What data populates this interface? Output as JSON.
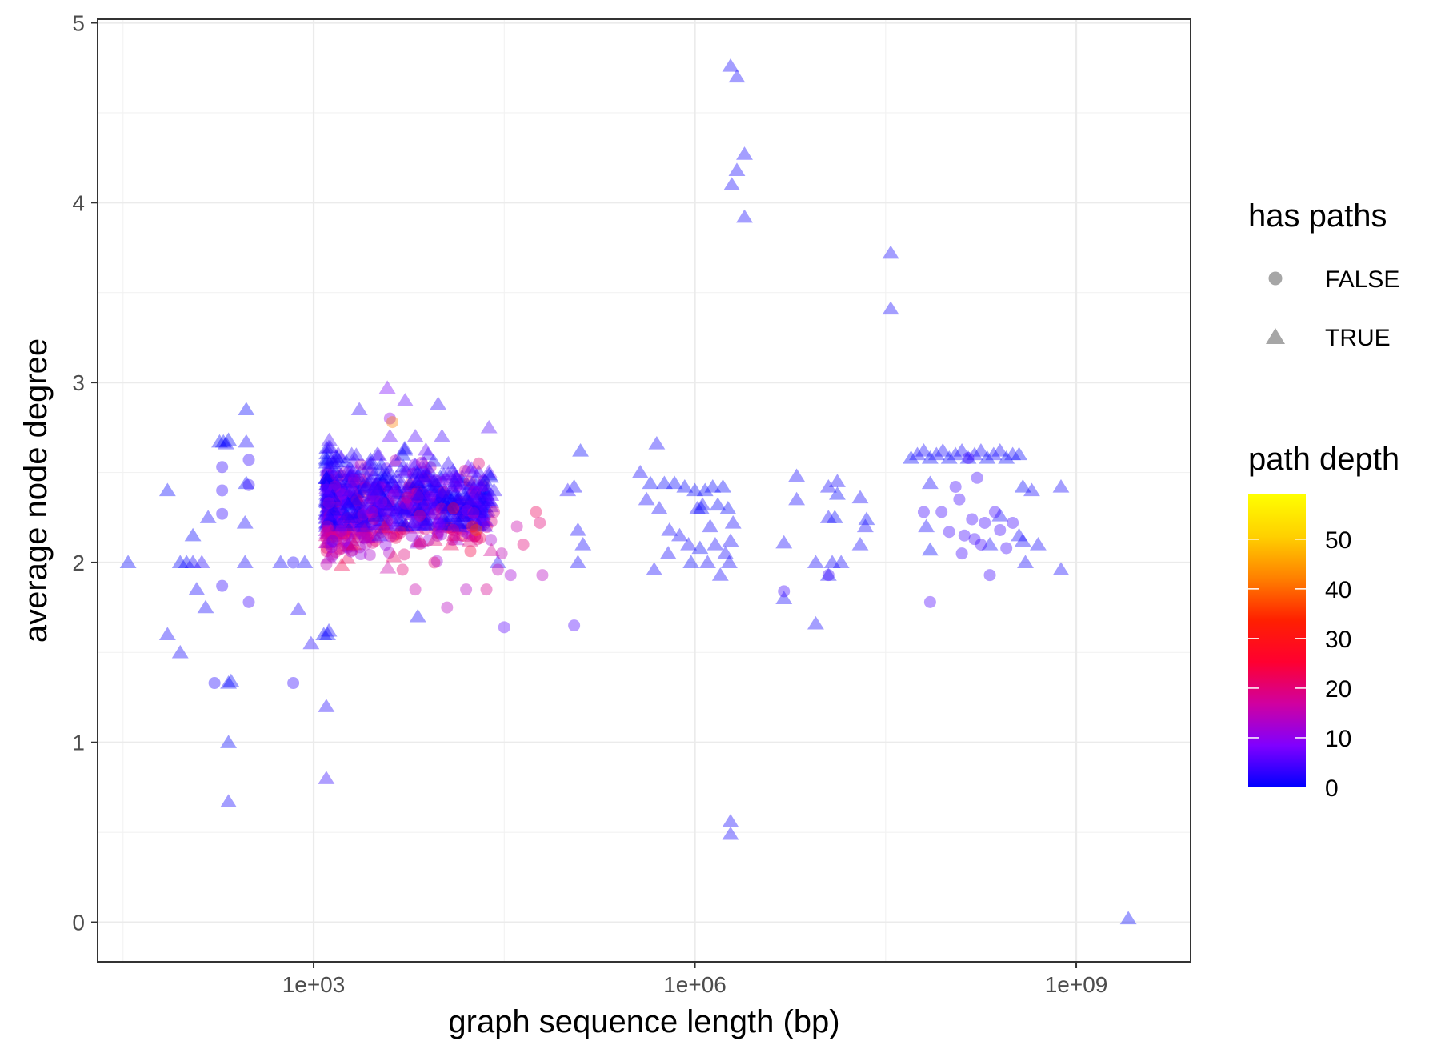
{
  "chart_data": {
    "type": "scatter",
    "title": "",
    "xlabel": "graph sequence length (bp)",
    "ylabel": "average node degree",
    "x_scale": "log10",
    "xlim": [
      1.3,
      9.9
    ],
    "ylim": [
      -0.22,
      5.02
    ],
    "x_ticks": [
      {
        "value": 3,
        "label": "1e+03"
      },
      {
        "value": 6,
        "label": "1e+06"
      },
      {
        "value": 9,
        "label": "1e+09"
      }
    ],
    "x_minor_ticks": [
      1.5,
      4.5,
      7.5
    ],
    "y_ticks": [
      {
        "value": 0,
        "label": "0"
      },
      {
        "value": 1,
        "label": "1"
      },
      {
        "value": 2,
        "label": "2"
      },
      {
        "value": 3,
        "label": "3"
      },
      {
        "value": 4,
        "label": "4"
      },
      {
        "value": 5,
        "label": "5"
      }
    ],
    "y_minor_ticks": [
      0.5,
      1.5,
      2.5,
      3.5,
      4.5
    ],
    "grid": true,
    "legend_position": "right",
    "shape_legend": {
      "title": "has paths",
      "items": [
        {
          "label": "FALSE",
          "shape": "circle"
        },
        {
          "label": "TRUE",
          "shape": "triangle"
        }
      ]
    },
    "color_legend": {
      "title": "path depth",
      "min": 0,
      "max": 59,
      "ticks": [
        0,
        10,
        20,
        30,
        40,
        50
      ],
      "colors": [
        "#0000ff",
        "#8000ff",
        "#d000a0",
        "#ff0030",
        "#ff2000",
        "#ff8000",
        "#ffd000",
        "#ffff00"
      ]
    },
    "series": [
      {
        "name": "TRUE",
        "shape": "triangle",
        "points": [
          [
            1.54,
            2.0,
            0
          ],
          [
            1.85,
            2.4,
            0
          ],
          [
            1.85,
            1.6,
            1
          ],
          [
            1.95,
            1.5,
            1
          ],
          [
            1.95,
            2.0,
            0
          ],
          [
            2.0,
            2.0,
            0
          ],
          [
            2.05,
            2.15,
            0
          ],
          [
            2.05,
            2.0,
            1
          ],
          [
            2.08,
            1.85,
            1
          ],
          [
            2.12,
            2.0,
            2
          ],
          [
            2.15,
            1.75,
            1
          ],
          [
            2.17,
            2.25,
            1
          ],
          [
            2.26,
            2.67,
            0
          ],
          [
            2.29,
            2.67,
            0
          ],
          [
            2.31,
            2.66,
            1
          ],
          [
            2.33,
            2.68,
            0
          ],
          [
            2.33,
            1.33,
            0
          ],
          [
            2.33,
            1.0,
            0
          ],
          [
            2.33,
            0.67,
            1
          ],
          [
            2.35,
            1.34,
            0
          ],
          [
            2.47,
            2.85,
            0
          ],
          [
            2.47,
            2.67,
            1
          ],
          [
            2.47,
            2.44,
            0
          ],
          [
            2.46,
            2.22,
            1
          ],
          [
            2.46,
            2.0,
            1
          ],
          [
            2.74,
            2.0,
            1
          ],
          [
            2.93,
            2.0,
            1
          ],
          [
            3.08,
            1.6,
            0
          ],
          [
            3.1,
            1.2,
            2
          ],
          [
            3.1,
            0.8,
            3
          ],
          [
            2.98,
            1.55,
            2
          ],
          [
            3.11,
            1.6,
            0
          ],
          [
            3.13,
            2.33,
            3
          ],
          [
            2.88,
            1.74,
            2
          ],
          [
            3.12,
            1.62,
            1
          ],
          [
            3.29,
            2.4,
            4
          ],
          [
            3.32,
            2.35,
            2
          ],
          [
            3.36,
            2.85,
            3
          ],
          [
            3.4,
            2.2,
            5
          ],
          [
            3.48,
            2.4,
            5
          ],
          [
            3.5,
            2.6,
            3
          ],
          [
            3.58,
            2.97,
            8
          ],
          [
            3.6,
            2.7,
            6
          ],
          [
            3.64,
            2.4,
            10
          ],
          [
            3.72,
            2.9,
            6
          ],
          [
            3.8,
            2.7,
            5
          ],
          [
            3.9,
            2.6,
            4
          ],
          [
            3.98,
            2.88,
            3
          ],
          [
            4.01,
            2.7,
            4
          ],
          [
            4.06,
            2.55,
            3
          ],
          [
            4.11,
            2.45,
            3
          ],
          [
            4.2,
            2.35,
            3
          ],
          [
            4.3,
            2.5,
            4
          ],
          [
            4.38,
            2.75,
            5
          ],
          [
            4.42,
            2.4,
            3
          ],
          [
            4.45,
            2.0,
            2
          ],
          [
            3.82,
            1.7,
            1
          ],
          [
            3.52,
            2.15,
            4
          ],
          [
            3.7,
            2.3,
            3
          ],
          [
            3.3,
            2.6,
            3
          ],
          [
            3.45,
            2.55,
            2
          ],
          [
            4.15,
            2.2,
            3
          ],
          [
            4.05,
            2.3,
            4
          ],
          [
            3.95,
            2.45,
            3
          ],
          [
            5.0,
            2.4,
            2
          ],
          [
            5.05,
            2.42,
            1
          ],
          [
            5.08,
            2.18,
            1
          ],
          [
            5.08,
            2.0,
            1
          ],
          [
            5.12,
            2.1,
            1
          ],
          [
            5.1,
            2.62,
            0
          ],
          [
            5.57,
            2.5,
            1
          ],
          [
            5.62,
            2.35,
            1
          ],
          [
            5.65,
            2.44,
            0
          ],
          [
            5.68,
            1.96,
            1
          ],
          [
            5.7,
            2.66,
            1
          ],
          [
            5.72,
            2.3,
            1
          ],
          [
            5.76,
            2.44,
            0
          ],
          [
            5.79,
            2.05,
            1
          ],
          [
            5.8,
            2.18,
            1
          ],
          [
            5.84,
            2.44,
            0
          ],
          [
            5.88,
            2.15,
            1
          ],
          [
            5.92,
            2.42,
            0
          ],
          [
            5.95,
            2.1,
            1
          ],
          [
            5.97,
            2.0,
            0
          ],
          [
            6.0,
            2.4,
            0
          ],
          [
            6.02,
            2.3,
            1
          ],
          [
            6.04,
            2.08,
            0
          ],
          [
            6.06,
            2.32,
            1
          ],
          [
            6.08,
            2.4,
            0
          ],
          [
            6.1,
            2.0,
            1
          ],
          [
            6.12,
            2.2,
            1
          ],
          [
            6.14,
            2.42,
            0
          ],
          [
            6.16,
            2.1,
            1
          ],
          [
            6.18,
            2.32,
            0
          ],
          [
            6.2,
            1.93,
            1
          ],
          [
            6.22,
            2.42,
            0
          ],
          [
            6.24,
            2.05,
            1
          ],
          [
            6.26,
            2.3,
            0
          ],
          [
            6.28,
            2.12,
            1
          ],
          [
            6.3,
            2.22,
            1
          ],
          [
            6.27,
            2.0,
            1
          ],
          [
            6.05,
            2.3,
            0
          ],
          [
            6.28,
            4.76,
            1
          ],
          [
            6.33,
            4.7,
            1
          ],
          [
            6.33,
            4.18,
            1
          ],
          [
            6.29,
            4.1,
            1
          ],
          [
            6.39,
            4.27,
            1
          ],
          [
            6.39,
            3.92,
            1
          ],
          [
            6.28,
            0.56,
            1
          ],
          [
            6.28,
            0.49,
            1
          ],
          [
            6.7,
            2.11,
            1
          ],
          [
            6.7,
            1.8,
            1
          ],
          [
            6.8,
            2.48,
            1
          ],
          [
            6.8,
            2.35,
            1
          ],
          [
            6.95,
            2.0,
            1
          ],
          [
            6.95,
            1.66,
            1
          ],
          [
            7.05,
            2.42,
            1
          ],
          [
            7.05,
            2.25,
            1
          ],
          [
            7.05,
            1.93,
            1
          ],
          [
            7.08,
            2.0,
            1
          ],
          [
            7.1,
            2.25,
            0
          ],
          [
            7.12,
            2.38,
            0
          ],
          [
            7.12,
            2.45,
            1
          ],
          [
            7.15,
            2.0,
            1
          ],
          [
            7.3,
            2.36,
            1
          ],
          [
            7.3,
            2.1,
            1
          ],
          [
            7.35,
            2.24,
            0
          ],
          [
            7.34,
            2.2,
            1
          ],
          [
            7.54,
            3.72,
            1
          ],
          [
            7.54,
            3.41,
            1
          ],
          [
            7.7,
            2.58,
            0
          ],
          [
            7.75,
            2.6,
            1
          ],
          [
            7.8,
            2.62,
            1
          ],
          [
            7.85,
            2.58,
            0
          ],
          [
            7.9,
            2.6,
            1
          ],
          [
            7.95,
            2.62,
            1
          ],
          [
            8.0,
            2.58,
            0
          ],
          [
            8.05,
            2.6,
            1
          ],
          [
            8.1,
            2.62,
            1
          ],
          [
            8.15,
            2.58,
            0
          ],
          [
            8.2,
            2.6,
            1
          ],
          [
            8.25,
            2.62,
            1
          ],
          [
            8.3,
            2.58,
            0
          ],
          [
            8.35,
            2.6,
            1
          ],
          [
            8.4,
            2.62,
            1
          ],
          [
            8.45,
            2.58,
            0
          ],
          [
            8.5,
            2.6,
            1
          ],
          [
            8.55,
            2.6,
            0
          ],
          [
            7.85,
            2.44,
            1
          ],
          [
            7.82,
            2.2,
            1
          ],
          [
            7.85,
            2.07,
            0
          ],
          [
            8.4,
            2.26,
            1
          ],
          [
            8.32,
            2.1,
            1
          ],
          [
            8.55,
            2.15,
            1
          ],
          [
            8.58,
            2.42,
            0
          ],
          [
            8.6,
            2.0,
            1
          ],
          [
            8.65,
            2.4,
            1
          ],
          [
            8.7,
            2.1,
            1
          ],
          [
            8.58,
            2.12,
            1
          ],
          [
            8.88,
            2.42,
            1
          ],
          [
            8.88,
            1.96,
            1
          ],
          [
            9.41,
            0.02,
            0
          ]
        ]
      },
      {
        "name": "FALSE",
        "shape": "circle",
        "points": [
          [
            2.22,
            1.33,
            2
          ],
          [
            2.28,
            1.87,
            3
          ],
          [
            2.28,
            2.27,
            3
          ],
          [
            2.28,
            2.4,
            3
          ],
          [
            2.28,
            2.53,
            3
          ],
          [
            2.49,
            2.57,
            3
          ],
          [
            2.49,
            2.43,
            3
          ],
          [
            2.49,
            1.78,
            4
          ],
          [
            2.84,
            1.33,
            3
          ],
          [
            2.84,
            2.0,
            2
          ],
          [
            3.11,
            2.2,
            15
          ],
          [
            3.14,
            2.14,
            18
          ],
          [
            3.12,
            2.33,
            12
          ],
          [
            3.15,
            2.12,
            6
          ],
          [
            3.6,
            2.8,
            10
          ],
          [
            3.8,
            1.85,
            16
          ],
          [
            4.05,
            1.75,
            14
          ],
          [
            4.2,
            1.85,
            14
          ],
          [
            4.36,
            1.85,
            18
          ],
          [
            4.45,
            1.96,
            15
          ],
          [
            4.5,
            1.64,
            6
          ],
          [
            4.55,
            1.93,
            12
          ],
          [
            4.6,
            2.2,
            16
          ],
          [
            4.65,
            2.1,
            20
          ],
          [
            4.75,
            2.28,
            22
          ],
          [
            4.78,
            2.22,
            20
          ],
          [
            4.8,
            1.93,
            14
          ],
          [
            4.48,
            2.05,
            15
          ],
          [
            4.42,
            2.28,
            19
          ],
          [
            4.3,
            2.55,
            20
          ],
          [
            4.1,
            2.18,
            18
          ],
          [
            3.95,
            2.0,
            20
          ],
          [
            3.7,
            1.96,
            20
          ],
          [
            4.28,
            2.18,
            40
          ],
          [
            3.62,
            2.78,
            42
          ],
          [
            4.25,
            2.2,
            30
          ],
          [
            4.1,
            2.3,
            26
          ],
          [
            5.05,
            1.65,
            5
          ],
          [
            6.7,
            1.84,
            4
          ],
          [
            7.05,
            1.93,
            4
          ],
          [
            7.8,
            2.28,
            4
          ],
          [
            7.85,
            1.78,
            5
          ],
          [
            7.94,
            2.28,
            4
          ],
          [
            8.0,
            2.17,
            4
          ],
          [
            8.05,
            2.42,
            4
          ],
          [
            8.08,
            2.35,
            4
          ],
          [
            8.1,
            2.05,
            4
          ],
          [
            8.12,
            2.15,
            4
          ],
          [
            8.18,
            2.24,
            4
          ],
          [
            8.2,
            2.13,
            4
          ],
          [
            8.25,
            2.1,
            4
          ],
          [
            8.28,
            2.22,
            4
          ],
          [
            8.32,
            1.93,
            4
          ],
          [
            8.36,
            2.28,
            4
          ],
          [
            8.4,
            2.18,
            4
          ],
          [
            8.45,
            2.08,
            4
          ],
          [
            8.5,
            2.22,
            4
          ],
          [
            8.22,
            2.47,
            4
          ],
          [
            8.15,
            2.58,
            4
          ]
        ]
      }
    ],
    "dense_cluster": {
      "shape_mix": [
        "triangle",
        "circle"
      ],
      "x_range": [
        3.1,
        4.4
      ],
      "y_center": 2.32,
      "y_range": [
        1.7,
        2.9
      ],
      "count": 900
    }
  }
}
